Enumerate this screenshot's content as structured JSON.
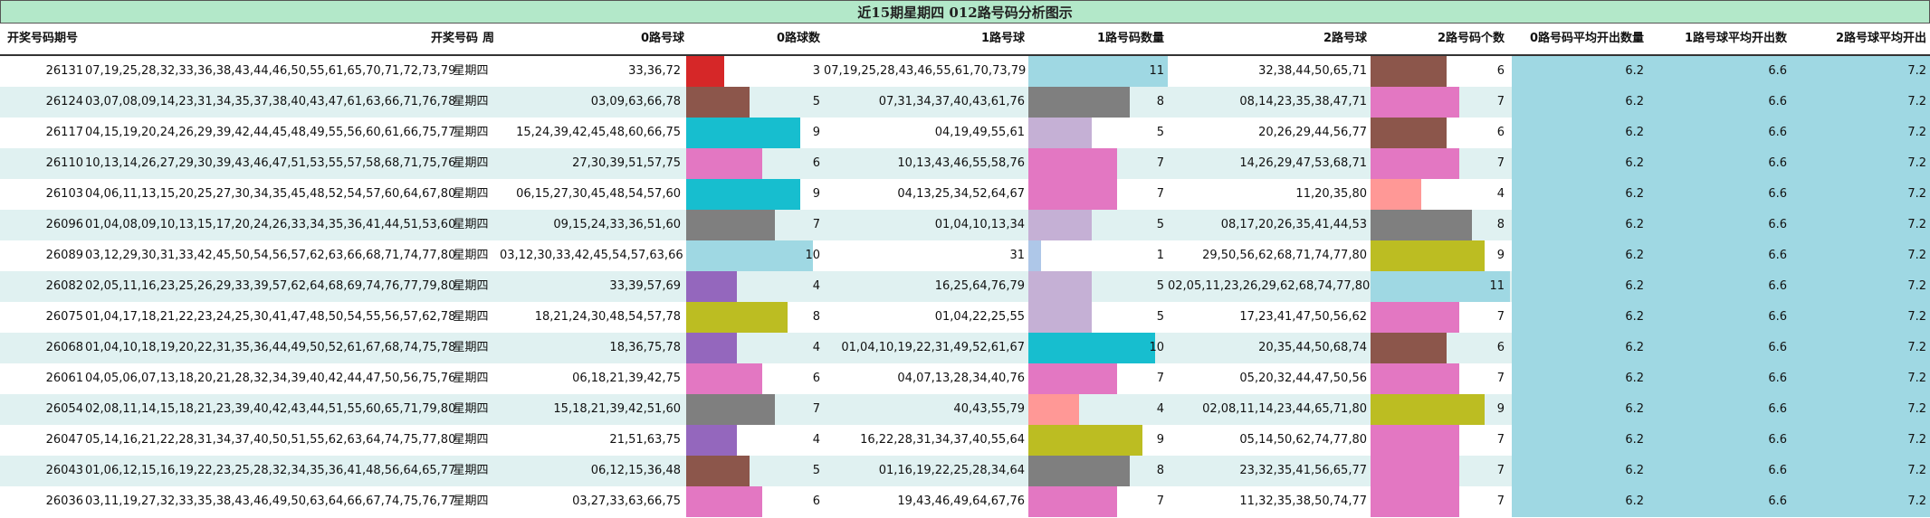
{
  "title": "近15期星期四 012路号码分析图示",
  "headers": {
    "period": "开奖号码期号",
    "numbers": "开奖号码",
    "weekday": "周",
    "r0": "0路号球",
    "r0count": "0路球数",
    "r1": "1路号球",
    "r1count": "1路号码数量",
    "r2": "2路号球",
    "r2count": "2路号码个数",
    "avg0": "0路号码平均开出数量",
    "avg1": "1路号球平均开出数",
    "avg2": "2路号球平均开出"
  },
  "chart_data": {
    "type": "table",
    "title": "近15期星期四 012路号码分析图示",
    "bar_max": 11,
    "rows": [
      {
        "period": "26131",
        "numbers": "07,19,25,28,32,33,36,38,43,44,46,50,55,61,65,70,71,72,73,79",
        "weekday": "星期四",
        "r0": "33,36,72",
        "c0": 3,
        "col0": "#d62728",
        "r1": "07,19,25,28,43,46,55,61,70,73,79",
        "c1": 11,
        "col1": "#9fd8e3",
        "r2": "32,38,44,50,65,71",
        "c2": 6,
        "col2": "#8c564b",
        "avg0": "6.2",
        "avg1": "6.6",
        "avg2": "7.2"
      },
      {
        "period": "26124",
        "numbers": "03,07,08,09,14,23,31,34,35,37,38,40,43,47,61,63,66,71,76,78",
        "weekday": "星期四",
        "r0": "03,09,63,66,78",
        "c0": 5,
        "col0": "#8c564b",
        "r1": "07,31,34,37,40,43,61,76",
        "c1": 8,
        "col1": "#7f7f7f",
        "r2": "08,14,23,35,38,47,71",
        "c2": 7,
        "col2": "#e377c2",
        "avg0": "6.2",
        "avg1": "6.6",
        "avg2": "7.2"
      },
      {
        "period": "26117",
        "numbers": "04,15,19,20,24,26,29,39,42,44,45,48,49,55,56,60,61,66,75,77",
        "weekday": "星期四",
        "r0": "15,24,39,42,45,48,60,66,75",
        "c0": 9,
        "col0": "#17becf",
        "r1": "04,19,49,55,61",
        "c1": 5,
        "col1": "#c5b0d5",
        "r2": "20,26,29,44,56,77",
        "c2": 6,
        "col2": "#8c564b",
        "avg0": "6.2",
        "avg1": "6.6",
        "avg2": "7.2"
      },
      {
        "period": "26110",
        "numbers": "10,13,14,26,27,29,30,39,43,46,47,51,53,55,57,58,68,71,75,76",
        "weekday": "星期四",
        "r0": "27,30,39,51,57,75",
        "c0": 6,
        "col0": "#e377c2",
        "r1": "10,13,43,46,55,58,76",
        "c1": 7,
        "col1": "#e377c2",
        "r2": "14,26,29,47,53,68,71",
        "c2": 7,
        "col2": "#e377c2",
        "avg0": "6.2",
        "avg1": "6.6",
        "avg2": "7.2"
      },
      {
        "period": "26103",
        "numbers": "04,06,11,13,15,20,25,27,30,34,35,45,48,52,54,57,60,64,67,80",
        "weekday": "星期四",
        "r0": "06,15,27,30,45,48,54,57,60",
        "c0": 9,
        "col0": "#17becf",
        "r1": "04,13,25,34,52,64,67",
        "c1": 7,
        "col1": "#e377c2",
        "r2": "11,20,35,80",
        "c2": 4,
        "col2": "#ff9896",
        "avg0": "6.2",
        "avg1": "6.6",
        "avg2": "7.2"
      },
      {
        "period": "26096",
        "numbers": "01,04,08,09,10,13,15,17,20,24,26,33,34,35,36,41,44,51,53,60",
        "weekday": "星期四",
        "r0": "09,15,24,33,36,51,60",
        "c0": 7,
        "col0": "#7f7f7f",
        "r1": "01,04,10,13,34",
        "c1": 5,
        "col1": "#c5b0d5",
        "r2": "08,17,20,26,35,41,44,53",
        "c2": 8,
        "col2": "#7f7f7f",
        "avg0": "6.2",
        "avg1": "6.6",
        "avg2": "7.2"
      },
      {
        "period": "26089",
        "numbers": "03,12,29,30,31,33,42,45,50,54,56,57,62,63,66,68,71,74,77,80",
        "weekday": "星期四",
        "r0": "03,12,30,33,42,45,54,57,63,66",
        "c0": 10,
        "col0": "#9fd8e3",
        "r1": "31",
        "c1": 1,
        "col1": "#aec7e8",
        "r2": "29,50,56,62,68,71,74,77,80",
        "c2": 9,
        "col2": "#bcbd22",
        "avg0": "6.2",
        "avg1": "6.6",
        "avg2": "7.2"
      },
      {
        "period": "26082",
        "numbers": "02,05,11,16,23,25,26,29,33,39,57,62,64,68,69,74,76,77,79,80",
        "weekday": "星期四",
        "r0": "33,39,57,69",
        "c0": 4,
        "col0": "#9467bd",
        "r1": "16,25,64,76,79",
        "c1": 5,
        "col1": "#c5b0d5",
        "r2": "02,05,11,23,26,29,62,68,74,77,80",
        "c2": 11,
        "col2": "#9fd8e3",
        "avg0": "6.2",
        "avg1": "6.6",
        "avg2": "7.2"
      },
      {
        "period": "26075",
        "numbers": "01,04,17,18,21,22,23,24,25,30,41,47,48,50,54,55,56,57,62,78",
        "weekday": "星期四",
        "r0": "18,21,24,30,48,54,57,78",
        "c0": 8,
        "col0": "#bcbd22",
        "r1": "01,04,22,25,55",
        "c1": 5,
        "col1": "#c5b0d5",
        "r2": "17,23,41,47,50,56,62",
        "c2": 7,
        "col2": "#e377c2",
        "avg0": "6.2",
        "avg1": "6.6",
        "avg2": "7.2"
      },
      {
        "period": "26068",
        "numbers": "01,04,10,18,19,20,22,31,35,36,44,49,50,52,61,67,68,74,75,78",
        "weekday": "星期四",
        "r0": "18,36,75,78",
        "c0": 4,
        "col0": "#9467bd",
        "r1": "01,04,10,19,22,31,49,52,61,67",
        "c1": 10,
        "col1": "#17becf",
        "r2": "20,35,44,50,68,74",
        "c2": 6,
        "col2": "#8c564b",
        "avg0": "6.2",
        "avg1": "6.6",
        "avg2": "7.2"
      },
      {
        "period": "26061",
        "numbers": "04,05,06,07,13,18,20,21,28,32,34,39,40,42,44,47,50,56,75,76",
        "weekday": "星期四",
        "r0": "06,18,21,39,42,75",
        "c0": 6,
        "col0": "#e377c2",
        "r1": "04,07,13,28,34,40,76",
        "c1": 7,
        "col1": "#e377c2",
        "r2": "05,20,32,44,47,50,56",
        "c2": 7,
        "col2": "#e377c2",
        "avg0": "6.2",
        "avg1": "6.6",
        "avg2": "7.2"
      },
      {
        "period": "26054",
        "numbers": "02,08,11,14,15,18,21,23,39,40,42,43,44,51,55,60,65,71,79,80",
        "weekday": "星期四",
        "r0": "15,18,21,39,42,51,60",
        "c0": 7,
        "col0": "#7f7f7f",
        "r1": "40,43,55,79",
        "c1": 4,
        "col1": "#ff9896",
        "r2": "02,08,11,14,23,44,65,71,80",
        "c2": 9,
        "col2": "#bcbd22",
        "avg0": "6.2",
        "avg1": "6.6",
        "avg2": "7.2"
      },
      {
        "period": "26047",
        "numbers": "05,14,16,21,22,28,31,34,37,40,50,51,55,62,63,64,74,75,77,80",
        "weekday": "星期四",
        "r0": "21,51,63,75",
        "c0": 4,
        "col0": "#9467bd",
        "r1": "16,22,28,31,34,37,40,55,64",
        "c1": 9,
        "col1": "#bcbd22",
        "r2": "05,14,50,62,74,77,80",
        "c2": 7,
        "col2": "#e377c2",
        "avg0": "6.2",
        "avg1": "6.6",
        "avg2": "7.2"
      },
      {
        "period": "26043",
        "numbers": "01,06,12,15,16,19,22,23,25,28,32,34,35,36,41,48,56,64,65,77",
        "weekday": "星期四",
        "r0": "06,12,15,36,48",
        "c0": 5,
        "col0": "#8c564b",
        "r1": "01,16,19,22,25,28,34,64",
        "c1": 8,
        "col1": "#7f7f7f",
        "r2": "23,32,35,41,56,65,77",
        "c2": 7,
        "col2": "#e377c2",
        "avg0": "6.2",
        "avg1": "6.6",
        "avg2": "7.2"
      },
      {
        "period": "26036",
        "numbers": "03,11,19,27,32,33,35,38,43,46,49,50,63,64,66,67,74,75,76,77",
        "weekday": "星期四",
        "r0": "03,27,33,63,66,75",
        "c0": 6,
        "col0": "#e377c2",
        "r1": "19,43,46,49,64,67,76",
        "c1": 7,
        "col1": "#e377c2",
        "r2": "11,32,35,38,50,74,77",
        "c2": 7,
        "col2": "#e377c2",
        "avg0": "6.2",
        "avg1": "6.6",
        "avg2": "7.2"
      }
    ]
  }
}
